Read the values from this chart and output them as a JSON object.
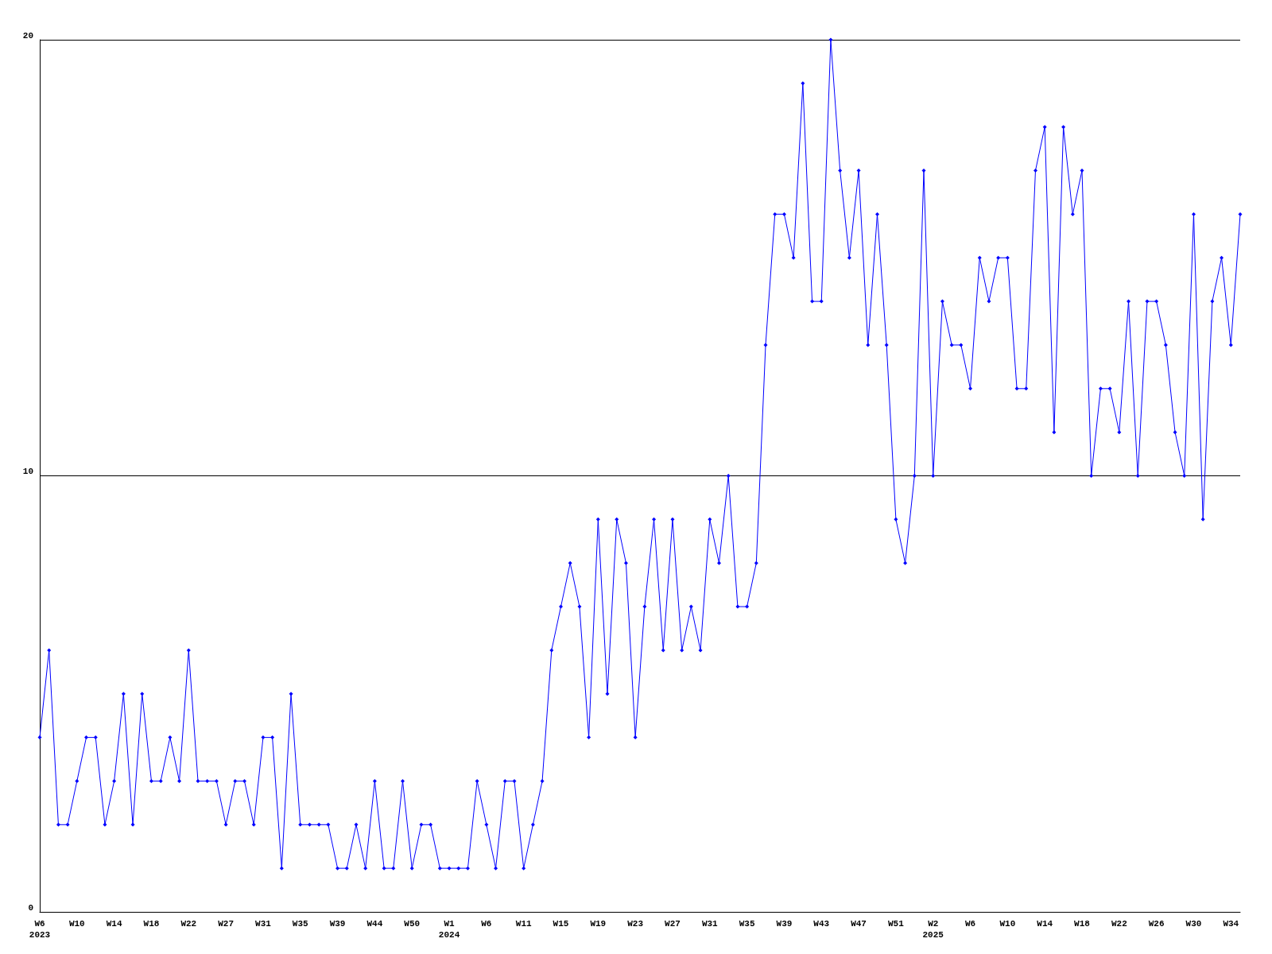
{
  "chart_data": {
    "type": "line",
    "categories": [
      "W6\n2023",
      null,
      null,
      null,
      "W10",
      null,
      null,
      null,
      "W14",
      null,
      null,
      null,
      "W18",
      null,
      null,
      null,
      "W22",
      null,
      null,
      null,
      "W27",
      null,
      null,
      null,
      "W31",
      null,
      null,
      null,
      "W35",
      null,
      null,
      null,
      "W39",
      null,
      null,
      null,
      "W44",
      null,
      null,
      null,
      "W50",
      null,
      null,
      null,
      "W1\n2024",
      null,
      null,
      null,
      "W6",
      null,
      null,
      null,
      "W11",
      null,
      null,
      null,
      "W15",
      null,
      null,
      null,
      "W19",
      null,
      null,
      null,
      "W23",
      null,
      null,
      null,
      "W27",
      null,
      null,
      null,
      "W31",
      null,
      null,
      null,
      "W35",
      null,
      null,
      null,
      "W39",
      null,
      null,
      null,
      "W43",
      null,
      null,
      null,
      "W47",
      null,
      null,
      null,
      "W51",
      null,
      null,
      null,
      "W2\n2025",
      null,
      null,
      null,
      "W6",
      null,
      null,
      null,
      "W10",
      null,
      null,
      null,
      "W14",
      null,
      null,
      null,
      "W18",
      null,
      null,
      null,
      "W22",
      null,
      null,
      null,
      "W26",
      null,
      null,
      null,
      "W30",
      null,
      null,
      null,
      "W34",
      null
    ],
    "series": [
      {
        "color": "#0000ff",
        "values": [
          4,
          6,
          2,
          2,
          3,
          4,
          4,
          2,
          3,
          5,
          2,
          5,
          3,
          3,
          4,
          3,
          6,
          3,
          3,
          3,
          2,
          3,
          3,
          2,
          4,
          4,
          1,
          5,
          2,
          2,
          2,
          2,
          1,
          1,
          2,
          1,
          3,
          1,
          1,
          3,
          1,
          2,
          2,
          1,
          1,
          1,
          1,
          3,
          2,
          1,
          3,
          3,
          1,
          2,
          3,
          6,
          7,
          8,
          7,
          4,
          9,
          5,
          9,
          8,
          4,
          7,
          9,
          6,
          9,
          6,
          7,
          6,
          9,
          8,
          10,
          7,
          7,
          8,
          13,
          16,
          16,
          15,
          19,
          14,
          14,
          20,
          17,
          15,
          17,
          13,
          16,
          13,
          9,
          8,
          10,
          17,
          10,
          14,
          13,
          13,
          12,
          15,
          14,
          15,
          15,
          12,
          12,
          17,
          18,
          11,
          18,
          16,
          17,
          10,
          12,
          12,
          11,
          14,
          10,
          14,
          14,
          13,
          11,
          10,
          16,
          9,
          14,
          15,
          13,
          16
        ]
      }
    ],
    "ylim": [
      0,
      20
    ],
    "yticks": [
      0,
      10,
      20
    ],
    "grid": "y",
    "marker": "diamond",
    "line_style": "solid"
  }
}
